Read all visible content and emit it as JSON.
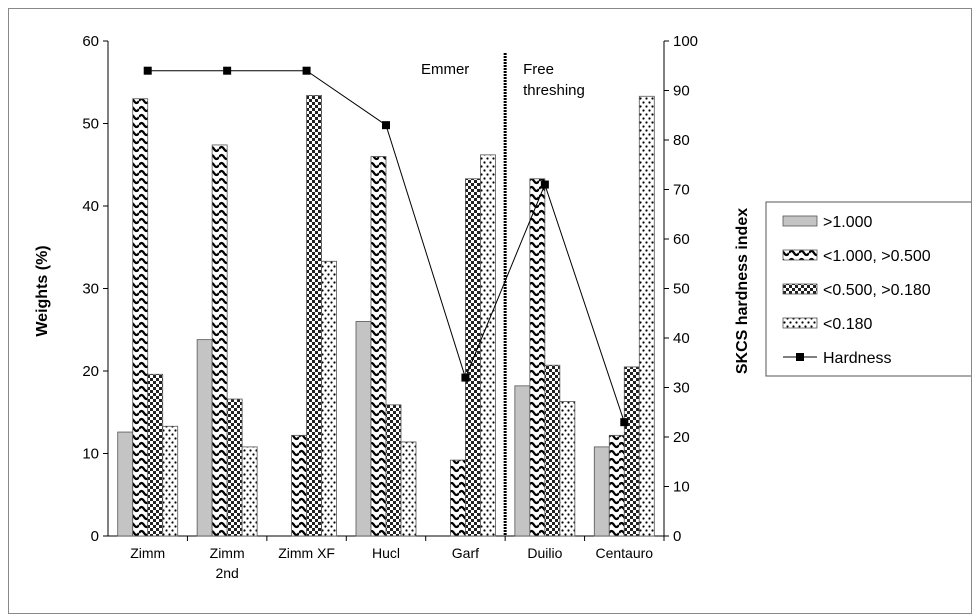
{
  "chart_data": {
    "type": "bar",
    "categories": [
      [
        "Zimm"
      ],
      [
        "Zimm",
        "2nd"
      ],
      [
        "Zimm XF"
      ],
      [
        "Hucl"
      ],
      [
        "Garf"
      ],
      [
        "Duilio"
      ],
      [
        "Centauro"
      ]
    ],
    "series": [
      {
        "name": ">1.000",
        "axis": "left",
        "pattern": "solid-gray",
        "values": [
          12.6,
          23.8,
          0,
          26.0,
          0,
          18.2,
          10.8
        ]
      },
      {
        "name": "<1.000, >0.500",
        "axis": "left",
        "pattern": "waves",
        "values": [
          53.0,
          47.4,
          12.2,
          46.0,
          9.2,
          43.3,
          12.2
        ]
      },
      {
        "name": "<0.500, >0.180",
        "axis": "left",
        "pattern": "checks",
        "values": [
          19.6,
          16.6,
          53.4,
          15.9,
          43.3,
          20.7,
          20.5
        ]
      },
      {
        "name": "<0.180",
        "axis": "left",
        "pattern": "dots",
        "values": [
          13.3,
          10.8,
          33.3,
          11.4,
          46.2,
          16.3,
          53.3
        ]
      },
      {
        "name": "Hardness",
        "axis": "right",
        "type": "line",
        "values": [
          94,
          94,
          94,
          83,
          32,
          71,
          23
        ]
      }
    ],
    "ylabel": "Weights (%)",
    "y2label": "SKCS hardness index",
    "ylim": [
      0,
      60
    ],
    "yticks": [
      0,
      10,
      20,
      30,
      40,
      50,
      60
    ],
    "y2lim": [
      0,
      100
    ],
    "y2ticks": [
      0,
      10,
      20,
      30,
      40,
      50,
      60,
      70,
      80,
      90,
      100
    ],
    "grid": false,
    "legend": "right",
    "annotations": [
      {
        "text": [
          "Emmer"
        ],
        "region": "left of divider"
      },
      {
        "text": [
          "Free",
          "threshing"
        ],
        "region": "right of divider"
      }
    ],
    "divider_between": [
      "Garf",
      "Duilio"
    ]
  }
}
